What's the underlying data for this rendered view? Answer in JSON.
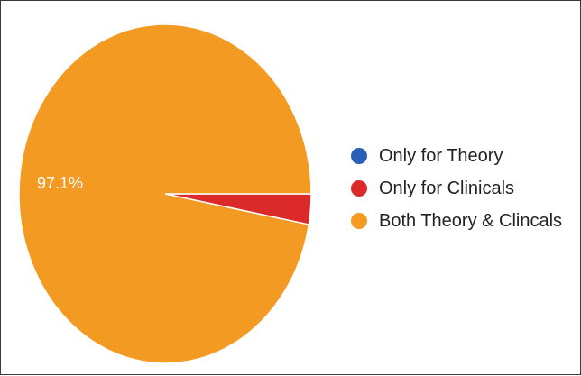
{
  "chart_data": {
    "type": "pie",
    "slices": [
      {
        "label": "Only for Theory",
        "value": 0,
        "color": "#2b5fb8"
      },
      {
        "label": "Only for Clinicals",
        "value": 2.9,
        "color": "#dc2a2a"
      },
      {
        "label": "Both Theory & Clincals",
        "value": 97.1,
        "color": "#f39a22"
      }
    ],
    "data_labels": [
      {
        "slice": "Both Theory & Clincals",
        "text": "97.1%"
      }
    ],
    "legend_position": "right"
  }
}
